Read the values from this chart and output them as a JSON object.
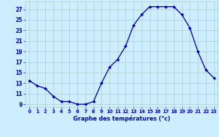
{
  "hours": [
    0,
    1,
    2,
    3,
    4,
    5,
    6,
    7,
    8,
    9,
    10,
    11,
    12,
    13,
    14,
    15,
    16,
    17,
    18,
    19,
    20,
    21,
    22,
    23
  ],
  "temps": [
    13.5,
    12.5,
    12.0,
    10.5,
    9.5,
    9.5,
    9.0,
    9.0,
    9.5,
    13.0,
    16.0,
    17.5,
    20.0,
    24.0,
    26.0,
    27.5,
    27.5,
    27.5,
    27.5,
    26.0,
    23.5,
    19.0,
    15.5,
    14.0
  ],
  "xlabel": "Graphe des températures (°c)",
  "yticks": [
    9,
    11,
    13,
    15,
    17,
    19,
    21,
    23,
    25,
    27
  ],
  "xticks": [
    0,
    1,
    2,
    3,
    4,
    5,
    6,
    7,
    8,
    9,
    10,
    11,
    12,
    13,
    14,
    15,
    16,
    17,
    18,
    19,
    20,
    21,
    22,
    23
  ],
  "ylim": [
    8.5,
    28.5
  ],
  "xlim": [
    -0.5,
    23.5
  ],
  "line_color": "#0000cc",
  "bg_color": "#cceeff",
  "grid_color": "#aacccc",
  "tick_color": "#0000cc",
  "label_color": "#0000cc"
}
